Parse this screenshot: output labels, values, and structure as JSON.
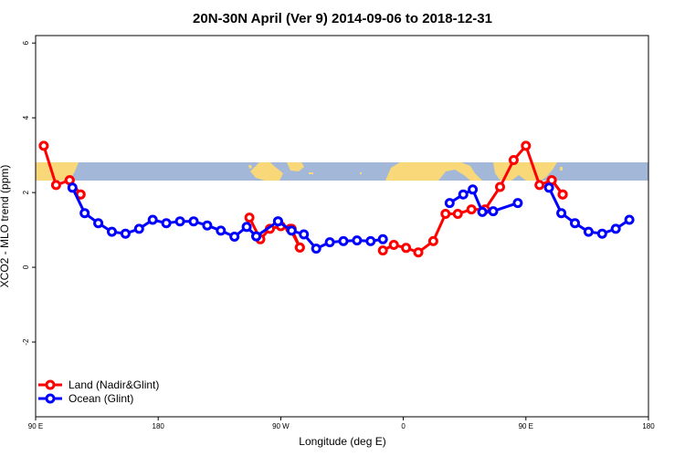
{
  "chart_data": {
    "type": "line",
    "title": "20N-30N April (Ver 9)   2014-09-06 to 2018-12-31",
    "xlabel": "Longitude (deg E)",
    "ylabel": "XCO2 - MLO trend (ppm)",
    "xlim": [
      90,
      540
    ],
    "ylim": [
      -4,
      6.2
    ],
    "x_ticks": [
      {
        "value": 90,
        "label": "90 E"
      },
      {
        "value": 180,
        "label": "180"
      },
      {
        "value": 270,
        "label": "90 W"
      },
      {
        "value": 360,
        "label": "0"
      },
      {
        "value": 450,
        "label": "90 E"
      },
      {
        "value": 540,
        "label": "180"
      }
    ],
    "y_ticks": [
      {
        "value": 6,
        "label": "6"
      },
      {
        "value": 4,
        "label": "4"
      },
      {
        "value": 2,
        "label": "2"
      },
      {
        "value": 0,
        "label": "0"
      },
      {
        "value": -2,
        "label": "-2"
      }
    ],
    "legend_position": "bottom-left",
    "map_strip": {
      "y_bottom": 2.3,
      "y_top": 2.85,
      "ocean_color": "#a3b8d9",
      "land_color": "#f8d878"
    },
    "series": [
      {
        "name": "Land (Nadir&Glint)",
        "color": "#ff0000",
        "segments": [
          [
            [
              96,
              3.25
            ],
            [
              105,
              2.2
            ],
            [
              115,
              2.33
            ],
            [
              123,
              1.95
            ]
          ],
          [
            [
              115,
              2.33
            ],
            [
              123,
              1.95
            ]
          ],
          [
            [
              247,
              1.33
            ],
            [
              255,
              0.75
            ],
            [
              262,
              1.03
            ],
            [
              270,
              1.1
            ],
            [
              277,
              1.03
            ],
            [
              284,
              0.53
            ]
          ],
          [
            [
              278,
              1.03
            ],
            [
              284,
              0.53
            ]
          ],
          [
            [
              345,
              0.45
            ],
            [
              353,
              0.6
            ],
            [
              362,
              0.52
            ],
            [
              371,
              0.4
            ],
            [
              382,
              0.7
            ],
            [
              391,
              1.43
            ],
            [
              400,
              1.43
            ],
            [
              410,
              1.55
            ],
            [
              420,
              1.55
            ],
            [
              431,
              2.15
            ],
            [
              441,
              2.87
            ],
            [
              450,
              3.25
            ],
            [
              460,
              2.2
            ],
            [
              469,
              2.33
            ],
            [
              477,
              1.95
            ]
          ],
          [
            [
              469,
              2.33
            ],
            [
              477,
              1.95
            ]
          ]
        ]
      },
      {
        "name": "Ocean (Glint)",
        "color": "#0000ff",
        "segments": [
          [
            [
              117,
              2.13
            ],
            [
              126,
              1.45
            ],
            [
              136,
              1.18
            ],
            [
              146,
              0.95
            ],
            [
              156,
              0.9
            ],
            [
              166,
              1.03
            ],
            [
              176,
              1.27
            ],
            [
              186,
              1.18
            ],
            [
              196,
              1.23
            ],
            [
              206,
              1.23
            ],
            [
              216,
              1.12
            ],
            [
              226,
              0.98
            ],
            [
              236,
              0.82
            ],
            [
              245,
              1.08
            ],
            [
              252,
              0.83
            ]
          ],
          [
            [
              268,
              1.23
            ],
            [
              278,
              0.98
            ],
            [
              287,
              0.88
            ],
            [
              296,
              0.5
            ],
            [
              306,
              0.67
            ],
            [
              316,
              0.7
            ],
            [
              326,
              0.72
            ],
            [
              336,
              0.7
            ],
            [
              345,
              0.75
            ]
          ],
          [
            [
              394,
              1.72
            ],
            [
              404,
              1.95
            ],
            [
              411,
              2.08
            ],
            [
              418,
              1.48
            ],
            [
              426,
              1.5
            ],
            [
              444,
              1.72
            ]
          ],
          [
            [
              467,
              2.13
            ],
            [
              476,
              1.45
            ],
            [
              486,
              1.18
            ],
            [
              496,
              0.95
            ],
            [
              506,
              0.9
            ],
            [
              516,
              1.03
            ],
            [
              526,
              1.27
            ]
          ],
          [
            [
              252,
              0.83
            ],
            [
              268,
              1.23
            ]
          ]
        ]
      }
    ]
  }
}
